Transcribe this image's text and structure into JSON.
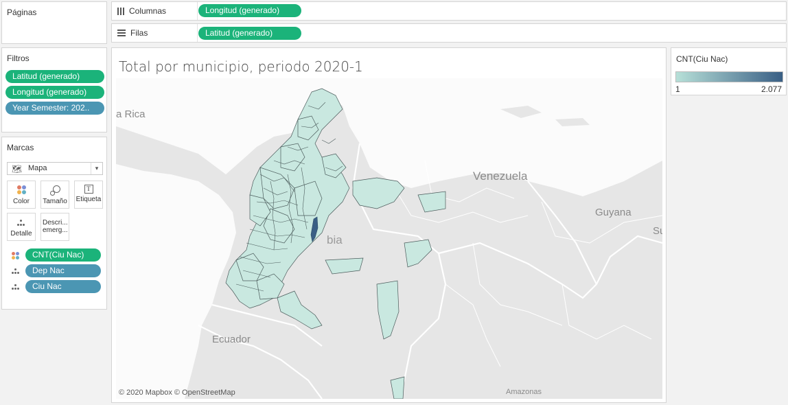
{
  "pages_panel": {
    "title": "Páginas"
  },
  "columns_shelf": {
    "label": "Columnas",
    "pill": "Longitud (generado)"
  },
  "rows_shelf": {
    "label": "Filas",
    "pill": "Latitud (generado)"
  },
  "filters_panel": {
    "title": "Filtros",
    "items": [
      "Latitud (generado)",
      "Longitud (generado)",
      "Year Semester: 202.."
    ]
  },
  "marks_panel": {
    "title": "Marcas",
    "mark_type": "Mapa",
    "buttons": {
      "color": "Color",
      "size": "Tamaño",
      "label": "Etiqueta",
      "detail": "Detalle",
      "tooltip": "Descri... emerg..."
    },
    "fields": [
      {
        "name": "CNT(Ciu Nac)",
        "kind": "color"
      },
      {
        "name": "Dep Nac",
        "kind": "detail"
      },
      {
        "name": "Ciu Nac",
        "kind": "detail"
      }
    ]
  },
  "view": {
    "title": "Total por municipio, periodo 2020-1",
    "attribution": "© 2020 Mapbox © OpenStreetMap",
    "map_labels": [
      "a Rica",
      "Venezuela",
      "Guyana",
      "Su",
      "bia",
      "Ecuador",
      "Amazonas"
    ]
  },
  "legend": {
    "title": "CNT(Ciu Nac)",
    "min": "1",
    "max": "2.077",
    "color_low": "#b7e0d8",
    "color_high": "#3a5f85"
  },
  "colors": {
    "pill_green": "#1bb37a",
    "pill_blue": "#4b96b3",
    "map_land": "#e6e6e6",
    "map_water": "#fbfbfb",
    "region_fill": "#c9e8e0",
    "region_stroke": "#4a5a5a"
  }
}
